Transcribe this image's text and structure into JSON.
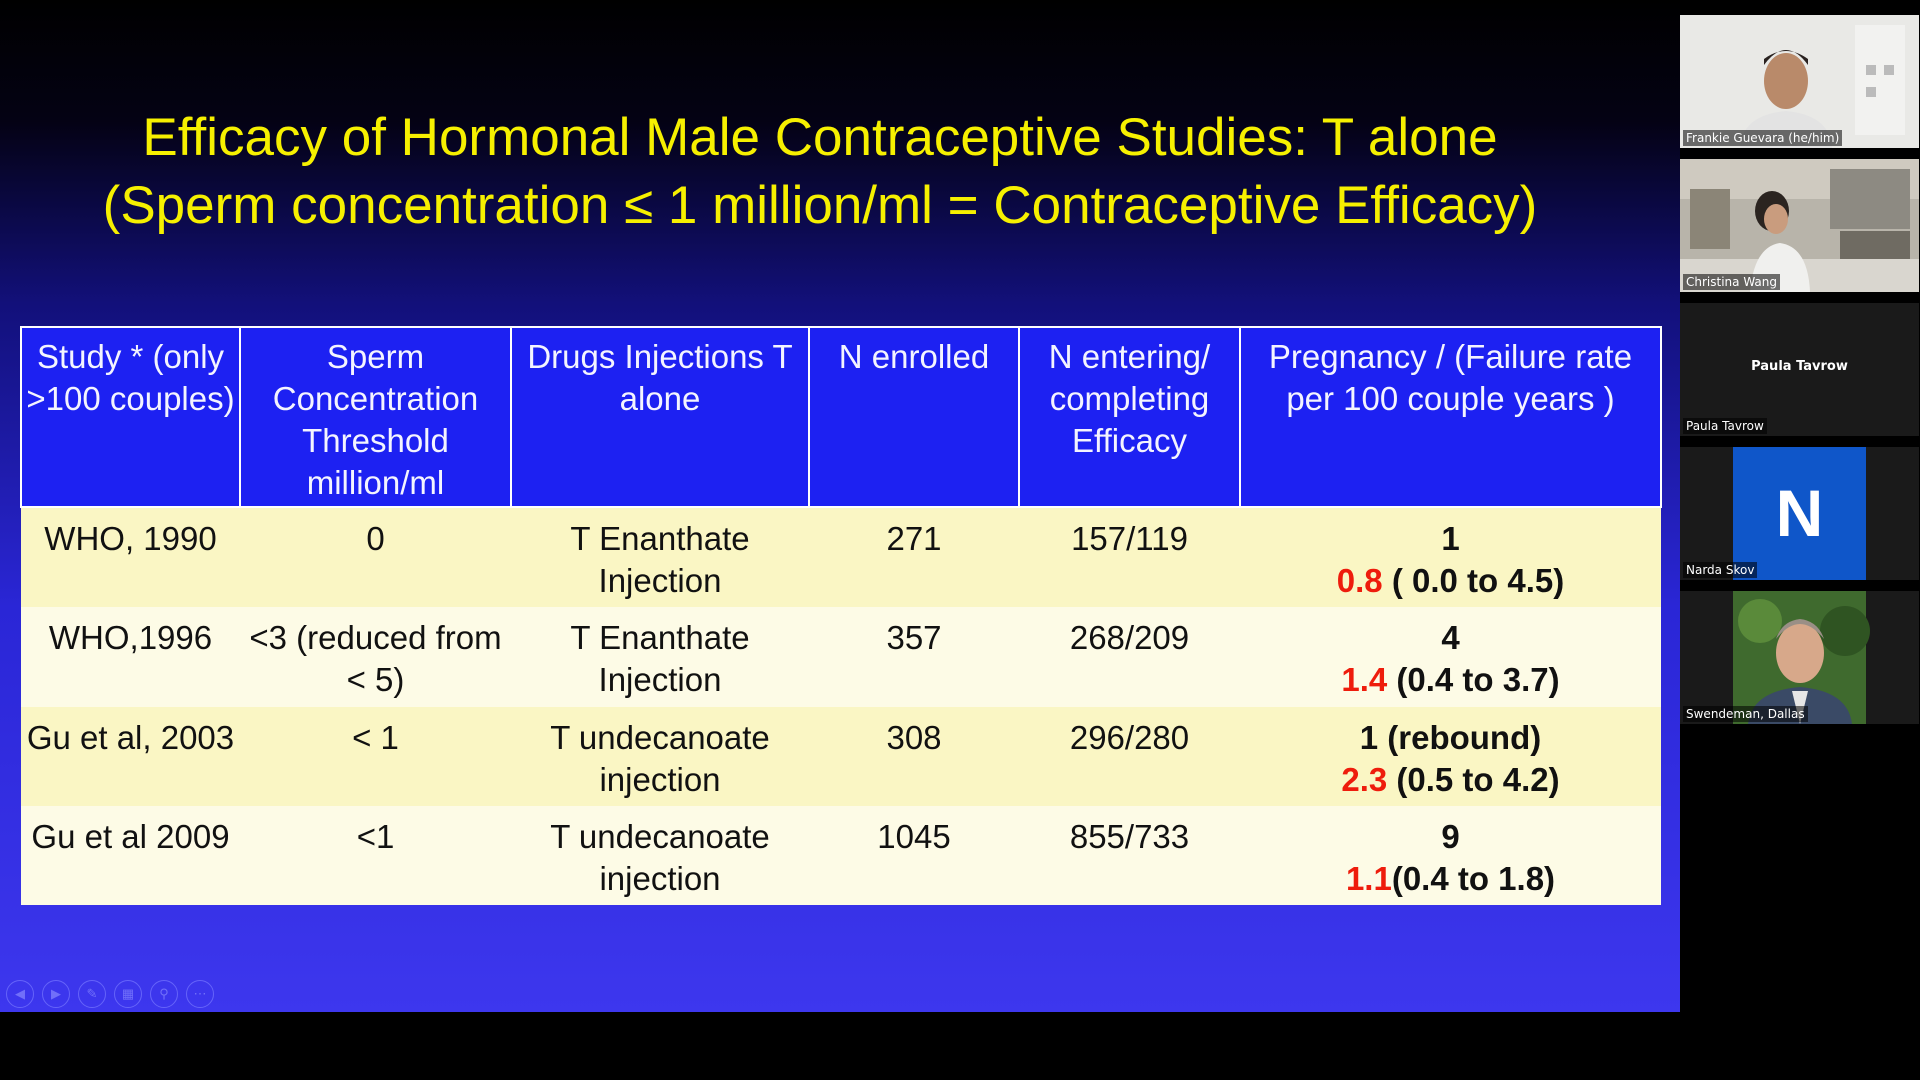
{
  "slide": {
    "title_line1": "Efficacy of Hormonal Male Contraceptive Studies:  T alone",
    "title_line2": "(Sperm concentration  ≤ 1 million/ml = Contraceptive Efficacy)",
    "table": {
      "headers": [
        "Study * (only >100 couples)",
        "Sperm Concentration Threshold million/ml",
        "Drugs Injections T alone",
        "N enrolled",
        "N  entering/ completing Efficacy",
        "Pregnancy / (Failure  rate  per 100 couple years )"
      ],
      "rows": [
        {
          "study": "WHO, 1990",
          "threshold": "0",
          "drug": "T Enanthate Injection",
          "enrolled": "271",
          "entering": "157/119",
          "preg_count": "1",
          "rate": "0.8",
          "ci": " ( 0.0 to 4.5)"
        },
        {
          "study": "WHO,1996",
          "threshold": "<3  (reduced from < 5)",
          "drug": "T Enanthate Injection",
          "enrolled": "357",
          "entering": "268/209",
          "preg_count": "4",
          "rate": "1.4",
          "ci": " (0.4 to 3.7)"
        },
        {
          "study": "Gu et al, 2003",
          "threshold": "< 1",
          "drug": "T undecanoate injection",
          "enrolled": "308",
          "entering": "296/280",
          "preg_count": "1 (rebound)",
          "rate": "2.3",
          "ci": " (0.5 to 4.2)"
        },
        {
          "study": "Gu et al 2009",
          "threshold": "<1",
          "drug": "T undecanoate injection",
          "enrolled": "1045",
          "entering": "855/733",
          "preg_count": "9",
          "rate": "1.1",
          "ci": "(0.4 to 1.8)"
        }
      ]
    },
    "colors": {
      "title": "#f6f000",
      "header_bg": "#1d21f2",
      "accent_red": "#ee1c0c"
    }
  },
  "presentation_controls": [
    "previous-icon",
    "next-icon",
    "pen-icon",
    "slides-grid-icon",
    "zoom-icon",
    "more-icon"
  ],
  "participants": [
    {
      "name": "Frankie Guevara (he/him)",
      "type": "video"
    },
    {
      "name": "Christina Wang",
      "type": "video"
    },
    {
      "name": "Paula Tavrow",
      "type": "no-video",
      "display": "Paula Tavrow"
    },
    {
      "name": "Narda Skov",
      "type": "avatar",
      "letter": "N"
    },
    {
      "name": "Swendeman, Dallas",
      "type": "video"
    }
  ]
}
